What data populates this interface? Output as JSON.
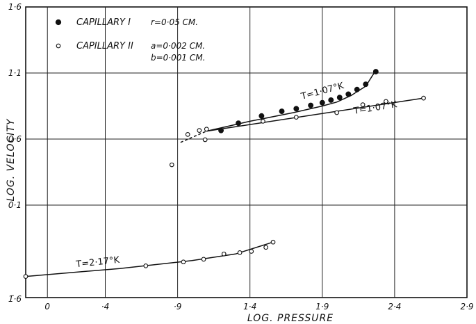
{
  "chart_data": {
    "type": "scatter",
    "xlabel": "LOG. PRESSURE",
    "ylabel": "LOG. VELOCITY",
    "xlim": [
      -0.15,
      2.9
    ],
    "ylim": [
      -0.6,
      1.6
    ],
    "xticks": [
      {
        "v": 0.0,
        "label": "0"
      },
      {
        "v": 0.4,
        "label": "·4"
      },
      {
        "v": 0.9,
        "label": "·9"
      },
      {
        "v": 1.4,
        "label": "1·4"
      },
      {
        "v": 1.9,
        "label": "1·9"
      },
      {
        "v": 2.4,
        "label": "2·4"
      },
      {
        "v": 2.9,
        "label": "2·9"
      }
    ],
    "yticks": [
      {
        "v": 1.6,
        "label": "1·6"
      },
      {
        "v": 1.1,
        "label": "1·1"
      },
      {
        "v": 0.6,
        "label": "0·6"
      },
      {
        "v": 0.1,
        "label": "0·1"
      },
      {
        "v": -0.6,
        "label": "1̄·6"
      }
    ],
    "grid": true,
    "legend": {
      "position": "top-left",
      "entries": [
        {
          "marker": "filled",
          "name": "CAPILLARY I",
          "params": [
            "r=0·05 CM."
          ]
        },
        {
          "marker": "open",
          "name": "CAPILLARY II",
          "params": [
            "a=0·002 CM.",
            "b=0·001 CM."
          ]
        }
      ]
    },
    "series": [
      {
        "name": "CAPILLARY I",
        "marker": "filled",
        "points": [
          [
            1.2,
            0.665
          ],
          [
            1.32,
            0.72
          ],
          [
            1.48,
            0.775
          ],
          [
            1.62,
            0.81
          ],
          [
            1.72,
            0.83
          ],
          [
            1.82,
            0.855
          ],
          [
            1.9,
            0.875
          ],
          [
            1.96,
            0.895
          ],
          [
            2.02,
            0.915
          ],
          [
            2.08,
            0.94
          ],
          [
            2.14,
            0.975
          ],
          [
            2.2,
            1.015
          ],
          [
            2.27,
            1.11
          ]
        ]
      },
      {
        "name": "CAPILLARY II",
        "marker": "open",
        "points": [
          [
            0.86,
            0.405
          ],
          [
            0.97,
            0.635
          ],
          [
            1.05,
            0.665
          ],
          [
            1.09,
            0.595
          ],
          [
            1.1,
            0.675
          ],
          [
            1.49,
            0.735
          ],
          [
            1.72,
            0.765
          ],
          [
            2.0,
            0.8
          ],
          [
            2.18,
            0.86
          ],
          [
            2.34,
            0.885
          ],
          [
            2.6,
            0.91
          ],
          [
            -0.15,
            -0.44
          ],
          [
            0.68,
            -0.36
          ],
          [
            0.94,
            -0.33
          ],
          [
            1.08,
            -0.31
          ],
          [
            1.22,
            -0.27
          ],
          [
            1.33,
            -0.26
          ],
          [
            1.41,
            -0.25
          ],
          [
            1.51,
            -0.22
          ],
          [
            1.56,
            -0.18
          ]
        ]
      }
    ],
    "curves": [
      {
        "label": "T=1·07°K",
        "style": "solid",
        "points": [
          [
            1.1,
            0.66
          ],
          [
            1.4,
            0.735
          ],
          [
            1.7,
            0.8
          ],
          [
            1.9,
            0.85
          ],
          [
            2.0,
            0.88
          ],
          [
            2.1,
            0.93
          ],
          [
            2.2,
            1.0
          ],
          [
            2.27,
            1.12
          ]
        ]
      },
      {
        "label": "",
        "style": "dashed",
        "points": [
          [
            0.92,
            0.575
          ],
          [
            1.1,
            0.66
          ]
        ]
      },
      {
        "label": "T=1·07°K",
        "style": "solid",
        "points": [
          [
            1.1,
            0.66
          ],
          [
            2.6,
            0.91
          ]
        ]
      },
      {
        "label": "T=2·17°K",
        "style": "solid",
        "points": [
          [
            -0.15,
            -0.44
          ],
          [
            0.5,
            -0.38
          ],
          [
            1.0,
            -0.32
          ],
          [
            1.3,
            -0.27
          ],
          [
            1.56,
            -0.18
          ]
        ]
      }
    ],
    "annotations": [
      {
        "text": "T=1·07°K",
        "x": 1.76,
        "y": 0.9,
        "rotate": -15
      },
      {
        "text": "T=1·07°K",
        "x": 2.12,
        "y": 0.79,
        "rotate": -9
      },
      {
        "text": "T=2·17°K",
        "x": 0.2,
        "y": -0.37,
        "rotate": -6
      }
    ]
  }
}
